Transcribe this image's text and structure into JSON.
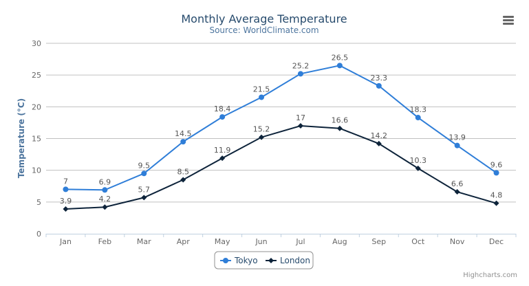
{
  "chart_data": {
    "type": "line",
    "title": "Monthly Average Temperature",
    "subtitle": "Source: WorldClimate.com",
    "xlabel": "",
    "ylabel": "Temperature (°C)",
    "ylim": [
      0,
      30
    ],
    "yticks": [
      0,
      5,
      10,
      15,
      20,
      25,
      30
    ],
    "grid": true,
    "legend_placement": "bottom",
    "categories": [
      "Jan",
      "Feb",
      "Mar",
      "Apr",
      "May",
      "Jun",
      "Jul",
      "Aug",
      "Sep",
      "Oct",
      "Nov",
      "Dec"
    ],
    "series": [
      {
        "name": "Tokyo",
        "color": "#2f7ed8",
        "marker": "circle",
        "values": [
          7.0,
          6.9,
          9.5,
          14.5,
          18.4,
          21.5,
          25.2,
          26.5,
          23.3,
          18.3,
          13.9,
          9.6
        ]
      },
      {
        "name": "London",
        "color": "#0d233a",
        "marker": "diamond",
        "values": [
          3.9,
          4.2,
          5.7,
          8.5,
          11.9,
          15.2,
          17.0,
          16.6,
          14.2,
          10.3,
          6.6,
          4.8
        ]
      }
    ]
  },
  "credits": "Highcharts.com",
  "menu_icon": "hamburger-menu-icon"
}
